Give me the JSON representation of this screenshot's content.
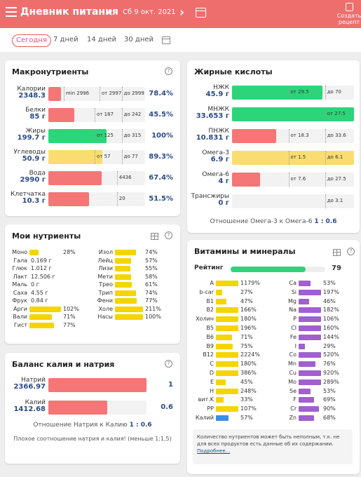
{
  "header": {
    "title": "Дневник питания",
    "date": "Сб 9 окт. 2021",
    "create_label": "Создать рецепт"
  },
  "range_tabs": [
    "Сегодня",
    "7 дней",
    "14 дней",
    "30 дней"
  ],
  "colors": {
    "red": "#f47676",
    "green": "#2ed47a",
    "yellow": "#f9dd70",
    "accent": "#ee6e6e"
  },
  "macros": {
    "title": "Макронутриенты",
    "rows": [
      {
        "name": "Калории",
        "value": "2348.3",
        "pct": "78.4%",
        "fill": 0.13,
        "color": "red",
        "marks": [
          "min 2996",
          "от 2997",
          "до 2999"
        ]
      },
      {
        "name": "Белки",
        "value": "85 г",
        "pct": "45.5%",
        "fill": 0.27,
        "color": "red",
        "marks": [
          "от 187",
          "до 242"
        ]
      },
      {
        "name": "Жиры",
        "value": "199.7 г",
        "pct": "100%",
        "fill": 0.6,
        "color": "green",
        "marks": [
          "от 125",
          "до 315"
        ]
      },
      {
        "name": "Углеводы",
        "value": "50.9 г",
        "pct": "89.3%",
        "fill": 0.56,
        "color": "yellow",
        "marks": [
          "от 57",
          "до 77"
        ]
      },
      {
        "name": "Вода",
        "value": "2990 г",
        "pct": "67.4%",
        "fill": 0.55,
        "color": "red",
        "marks": [
          "4436"
        ]
      },
      {
        "name": "Клетчатка",
        "value": "10.3 г",
        "pct": "51.5%",
        "fill": 0.42,
        "color": "red",
        "marks": [
          "20"
        ]
      }
    ]
  },
  "fatty": {
    "title": "Жирные кислоты",
    "rows": [
      {
        "name": "НЖК",
        "value": "45.9 г",
        "fill": 0.74,
        "color": "green",
        "marks": [
          "от 29.5",
          "до 70"
        ]
      },
      {
        "name": "МНЖК",
        "value": "33.653 г",
        "fill": 1.0,
        "color": "green",
        "marks": [
          "от 27.5"
        ]
      },
      {
        "name": "ПНЖК",
        "value": "10.831 г",
        "fill": 0.36,
        "color": "red",
        "marks": [
          "от 18.3",
          "до 33.6"
        ]
      },
      {
        "name": "Омега-3",
        "value": "6.9 г",
        "fill": 1.0,
        "color": "yellow",
        "marks": [
          "от 1.5",
          "до 6.1"
        ]
      },
      {
        "name": "Омега-6",
        "value": "4 г",
        "fill": 0.23,
        "color": "red",
        "marks": [
          "от 7.6",
          "до 27.5"
        ]
      },
      {
        "name": "Трансжиры",
        "value": "0 г",
        "fill": 0,
        "color": "red",
        "marks": [
          "до 3.1"
        ]
      }
    ],
    "ratio_label": "Отношение Омега-3 к Омега-6",
    "ratio_value": "1 : 0.6"
  },
  "my_nutrients": {
    "title": "Мои нутриенты",
    "left": [
      {
        "name": "Моно",
        "value": "28%",
        "fill": 0.28
      },
      {
        "name": "Гала",
        "value": "0.169 г",
        "fill": 0
      },
      {
        "name": "Глюк",
        "value": "1.012 г",
        "fill": 0
      },
      {
        "name": "Лакт",
        "value": "12.506 г",
        "fill": 0
      },
      {
        "name": "Маль",
        "value": "0 г",
        "fill": 0
      },
      {
        "name": "Саха",
        "value": "4.55 г",
        "fill": 0
      },
      {
        "name": "Фрук",
        "value": "0.84 г",
        "fill": 0
      },
      {
        "name": "Арги",
        "value": "102%",
        "fill": 1.0
      },
      {
        "name": "Вали",
        "value": "71%",
        "fill": 0.71
      },
      {
        "name": "Гист",
        "value": "77%",
        "fill": 0.77
      }
    ],
    "right": [
      {
        "name": "Изол",
        "value": "74%",
        "fill": 0.74
      },
      {
        "name": "Лейц",
        "value": "57%",
        "fill": 0.57
      },
      {
        "name": "Лизи",
        "value": "55%",
        "fill": 0.55
      },
      {
        "name": "Мети",
        "value": "58%",
        "fill": 0.58
      },
      {
        "name": "Трео",
        "value": "61%",
        "fill": 0.61
      },
      {
        "name": "Трип",
        "value": "74%",
        "fill": 0.74
      },
      {
        "name": "Фени",
        "value": "77%",
        "fill": 0.77
      },
      {
        "name": "Холе",
        "value": "211%",
        "fill": 1.0
      },
      {
        "name": "Насы",
        "value": "100%",
        "fill": 1.0
      }
    ]
  },
  "kna": {
    "title": "Баланс калия и натрия",
    "rows": [
      {
        "name": "Натрий",
        "value": "2366.97",
        "num": "1",
        "fill": 1.0
      },
      {
        "name": "Калий",
        "value": "1412.68",
        "num": "0.6",
        "fill": 0.6
      }
    ],
    "ratio_label": "Отношение Натрия к Калию",
    "ratio_value": "1 : 0.6",
    "warning": "Плохое соотношение натрия и калия! (меньше 1:1,5)"
  },
  "vitamins": {
    "title": "Витамины и минералы",
    "rating_label": "Рейтинг",
    "rating_value": "79",
    "rating_fill": 0.79,
    "left": [
      {
        "name": "A",
        "value": "1179%",
        "fill": 1.0,
        "color": "#f5d400"
      },
      {
        "name": "b-car",
        "value": "27%",
        "fill": 0.27,
        "color": "#f5d400"
      },
      {
        "name": "B1",
        "value": "47%",
        "fill": 0.47,
        "color": "#f5d400"
      },
      {
        "name": "B2",
        "value": "166%",
        "fill": 1.0,
        "color": "#f5d400"
      },
      {
        "name": "Холин",
        "value": "180%",
        "fill": 1.0,
        "color": "#f5d400"
      },
      {
        "name": "B5",
        "value": "196%",
        "fill": 1.0,
        "color": "#f5d400"
      },
      {
        "name": "B6",
        "value": "71%",
        "fill": 0.71,
        "color": "#f5d400"
      },
      {
        "name": "B9",
        "value": "75%",
        "fill": 0.75,
        "color": "#f5d400"
      },
      {
        "name": "B12",
        "value": "2224%",
        "fill": 1.0,
        "color": "#f5d400"
      },
      {
        "name": "C",
        "value": "180%",
        "fill": 1.0,
        "color": "#f5d400"
      },
      {
        "name": "D",
        "value": "386%",
        "fill": 1.0,
        "color": "#f5d400"
      },
      {
        "name": "E",
        "value": "45%",
        "fill": 0.45,
        "color": "#f5d400"
      },
      {
        "name": "H",
        "value": "248%",
        "fill": 1.0,
        "color": "#f5d400"
      },
      {
        "name": "вит.K",
        "value": "33%",
        "fill": 0.33,
        "color": "#f5d400"
      },
      {
        "name": "PP",
        "value": "107%",
        "fill": 1.0,
        "color": "#f5d400"
      },
      {
        "name": "Калий",
        "value": "57%",
        "fill": 0.57,
        "color": "#3a8ee6"
      }
    ],
    "right": [
      {
        "name": "Ca",
        "value": "53%",
        "fill": 0.53,
        "color": "#a15fd0"
      },
      {
        "name": "Si",
        "value": "197%",
        "fill": 1.0,
        "color": "#a15fd0"
      },
      {
        "name": "Mg",
        "value": "46%",
        "fill": 0.46,
        "color": "#a15fd0"
      },
      {
        "name": "Na",
        "value": "182%",
        "fill": 1.0,
        "color": "#a15fd0"
      },
      {
        "name": "P",
        "value": "106%",
        "fill": 1.0,
        "color": "#a15fd0"
      },
      {
        "name": "Cl",
        "value": "160%",
        "fill": 1.0,
        "color": "#a15fd0"
      },
      {
        "name": "Fe",
        "value": "144%",
        "fill": 1.0,
        "color": "#a15fd0"
      },
      {
        "name": "I",
        "value": "29%",
        "fill": 0.29,
        "color": "#a15fd0"
      },
      {
        "name": "Co",
        "value": "520%",
        "fill": 1.0,
        "color": "#a15fd0"
      },
      {
        "name": "Mn",
        "value": "76%",
        "fill": 0.76,
        "color": "#a15fd0"
      },
      {
        "name": "Cu",
        "value": "920%",
        "fill": 1.0,
        "color": "#a15fd0"
      },
      {
        "name": "Mo",
        "value": "289%",
        "fill": 1.0,
        "color": "#a15fd0"
      },
      {
        "name": "Se",
        "value": "53%",
        "fill": 0.53,
        "color": "#a15fd0"
      },
      {
        "name": "F",
        "value": "69%",
        "fill": 0.69,
        "color": "#a15fd0"
      },
      {
        "name": "Cr",
        "value": "90%",
        "fill": 0.9,
        "color": "#a15fd0"
      },
      {
        "name": "Zn",
        "value": "68%",
        "fill": 0.68,
        "color": "#a15fd0"
      }
    ],
    "info_text": "Количество нутриентов может быть неполным, т.к. не для всех продуктов есть данные об их содержании.",
    "info_link": "Подробнее..."
  }
}
